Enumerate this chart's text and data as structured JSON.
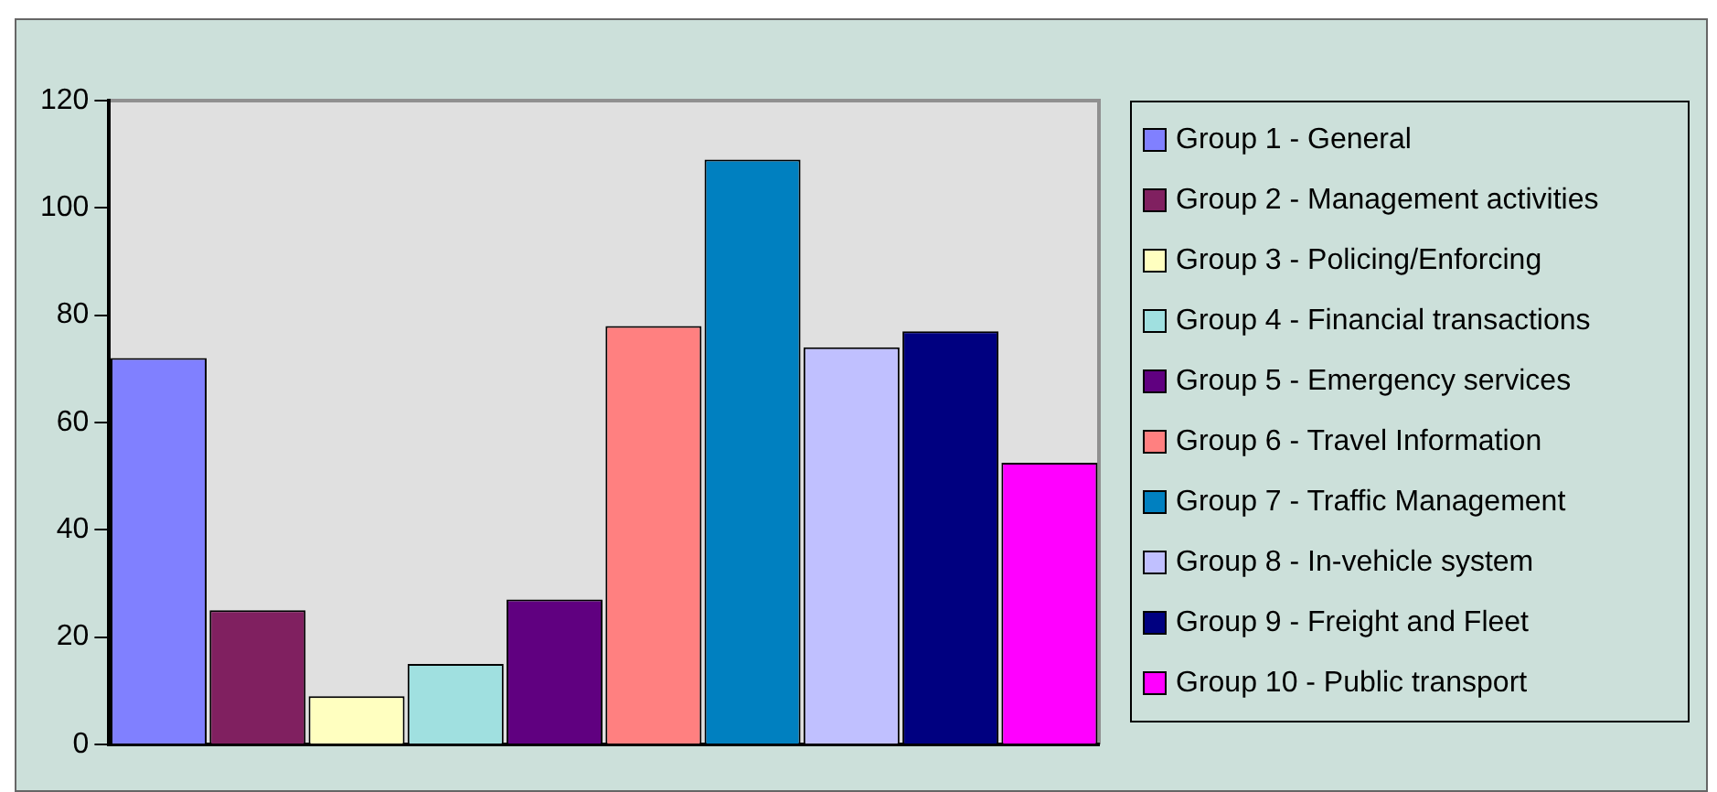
{
  "chart_data": {
    "type": "bar",
    "categories": [
      null
    ],
    "series": [
      {
        "name": "Group 1 - General",
        "color": "#8080ff",
        "values": [
          72
        ]
      },
      {
        "name": "Group 2 - Management activities",
        "color": "#802060",
        "values": [
          25
        ]
      },
      {
        "name": "Group 3 - Policing/Enforcing",
        "color": "#ffffc0",
        "values": [
          9
        ]
      },
      {
        "name": "Group 4 - Financial transactions",
        "color": "#a0e0e0",
        "values": [
          15
        ]
      },
      {
        "name": "Group 5 - Emergency services",
        "color": "#600080",
        "values": [
          27
        ]
      },
      {
        "name": "Group 6 - Travel Information",
        "color": "#ff8080",
        "values": [
          78
        ]
      },
      {
        "name": "Group 7 - Traffic Management",
        "color": "#0080c0",
        "values": [
          109
        ]
      },
      {
        "name": "Group 8 - In-vehicle system",
        "color": "#c0c0ff",
        "values": [
          74
        ]
      },
      {
        "name": "Group 9 - Freight and Fleet",
        "color": "#000080",
        "values": [
          77
        ]
      },
      {
        "name": "Group 10 - Public transport",
        "color": "#ff00ff",
        "values": [
          52.5
        ]
      }
    ],
    "ylim": [
      0,
      120
    ],
    "yticks": [
      0,
      20,
      40,
      60,
      80,
      100,
      120
    ],
    "grid": false,
    "legend": "right"
  }
}
